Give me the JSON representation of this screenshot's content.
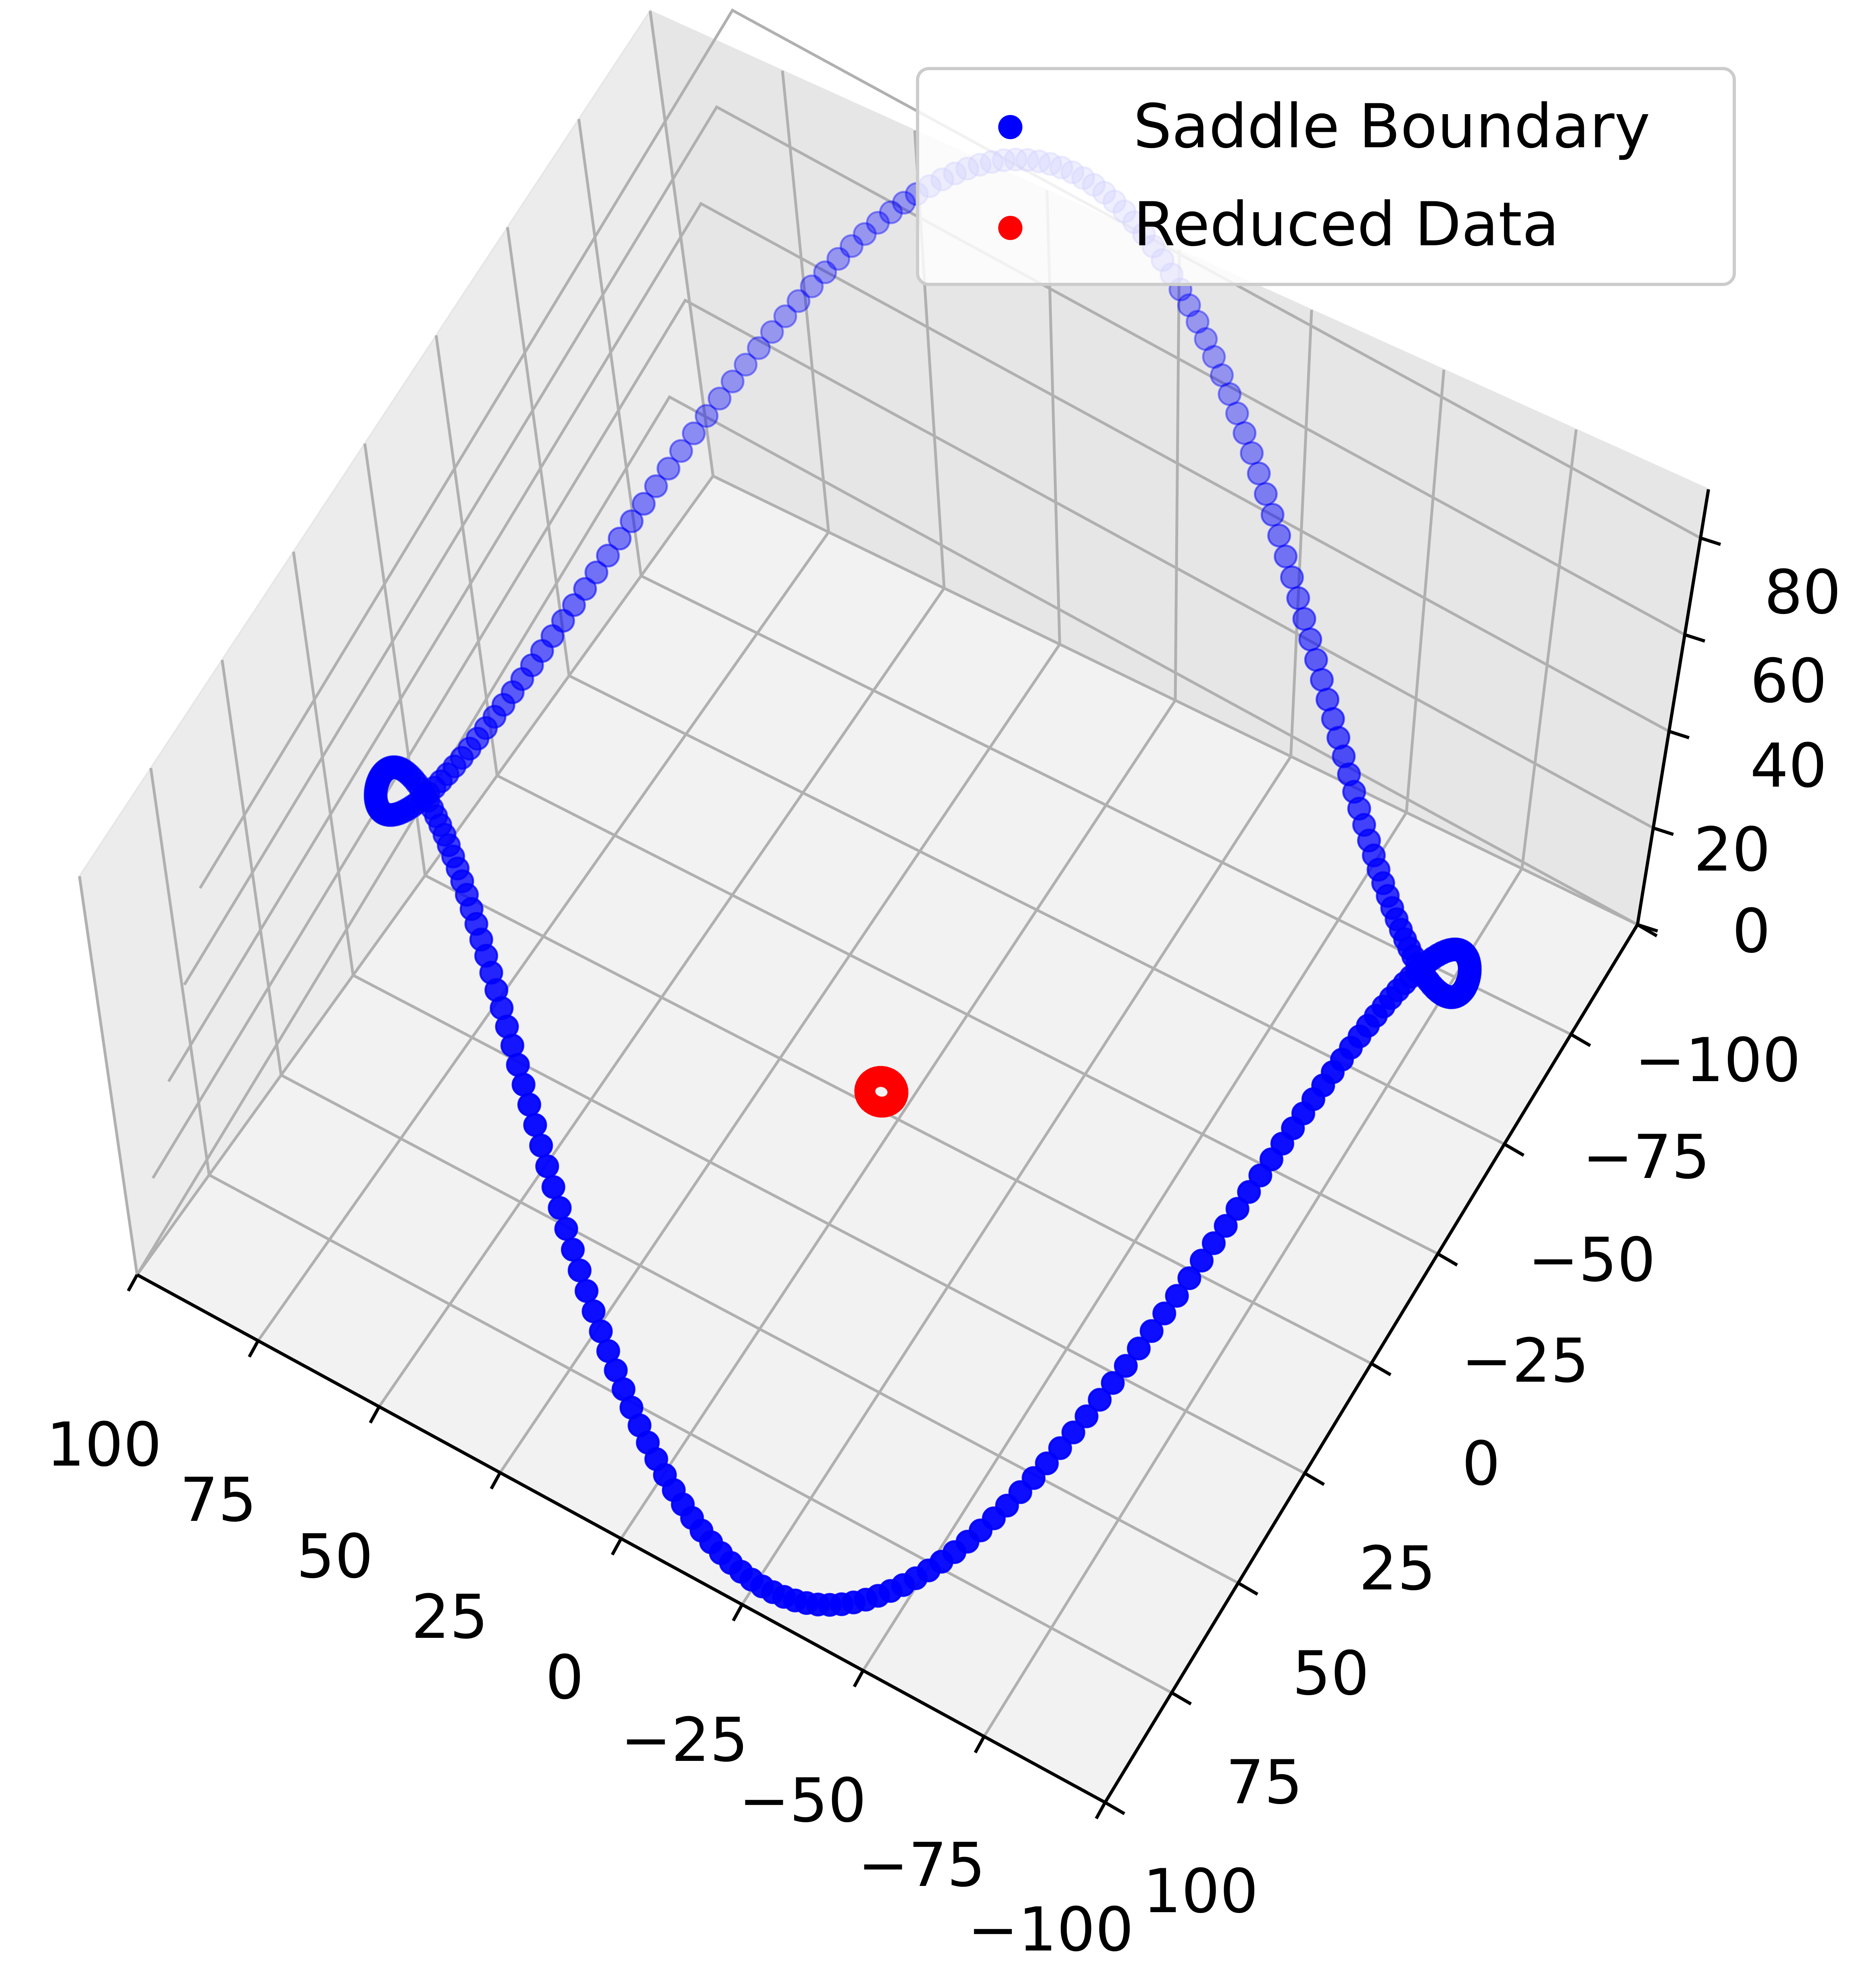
{
  "chart_data": {
    "type": "scatter",
    "projection": "3d",
    "grid": true,
    "legend_placement": "top-right",
    "xlim": [
      -100,
      100
    ],
    "ylim": [
      -100,
      100
    ],
    "zlim": [
      0,
      90
    ],
    "x_ticks": [
      "100",
      "75",
      "50",
      "25",
      "0",
      "−25",
      "−50",
      "−75",
      "−100"
    ],
    "y_ticks": [
      "−100",
      "−75",
      "−50",
      "−25",
      "0",
      "25",
      "50",
      "75",
      "100"
    ],
    "z_ticks": [
      "0",
      "20",
      "40",
      "60",
      "80"
    ],
    "series": [
      {
        "name": "Saddle Boundary",
        "color": "#0000ff",
        "shape": "closed boundary loop of a saddle surface, radius about 100, height varies 0 to 90",
        "points_xyz": [
          [
            100,
            0,
            0
          ],
          [
            87,
            50,
            52
          ],
          [
            50,
            87,
            82
          ],
          [
            0,
            100,
            60
          ],
          [
            -50,
            87,
            13
          ],
          [
            -87,
            50,
            3
          ],
          [
            -100,
            0,
            0
          ],
          [
            -87,
            -50,
            52
          ],
          [
            -50,
            -87,
            82
          ],
          [
            0,
            -100,
            60
          ],
          [
            50,
            -87,
            13
          ],
          [
            87,
            -50,
            3
          ]
        ]
      },
      {
        "name": "Reduced Data",
        "color": "#ff0000",
        "shape": "small ring near the origin",
        "points_xyz": [
          [
            3,
            0,
            0
          ],
          [
            0,
            3,
            0
          ],
          [
            -3,
            0,
            0
          ],
          [
            0,
            -3,
            0
          ]
        ]
      }
    ]
  }
}
